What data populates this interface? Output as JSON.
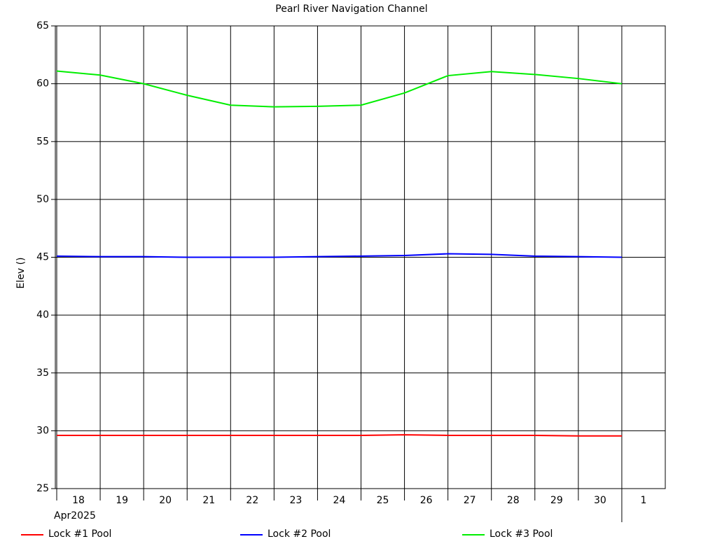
{
  "chart_data": {
    "type": "line",
    "title": "Pearl River Navigation Channel",
    "y_label": "Elev ()",
    "x_label": "Apr2025",
    "x": [
      "2025-04-18",
      "2025-04-19",
      "2025-04-20",
      "2025-04-21",
      "2025-04-22",
      "2025-04-23",
      "2025-04-24",
      "2025-04-25",
      "2025-04-26",
      "2025-04-27",
      "2025-04-28",
      "2025-04-29",
      "2025-04-30",
      "2025-05-01"
    ],
    "series": [
      {
        "name": "Lock #1 Pool",
        "color": "#ff0000",
        "values": [
          29.6,
          29.6,
          29.6,
          29.6,
          29.6,
          29.6,
          29.6,
          29.6,
          29.65,
          29.6,
          29.6,
          29.6,
          29.55,
          29.55
        ]
      },
      {
        "name": "Lock #2 Pool",
        "color": "#0000ff",
        "values": [
          45.1,
          45.05,
          45.05,
          45.0,
          45.0,
          45.0,
          45.05,
          45.1,
          45.15,
          45.3,
          45.25,
          45.1,
          45.05,
          45.0
        ]
      },
      {
        "name": "Lock #3 Pool",
        "color": "#00ee00",
        "values": [
          61.1,
          60.75,
          60.0,
          59.0,
          58.15,
          58.0,
          58.05,
          58.15,
          59.2,
          60.7,
          61.05,
          60.8,
          60.45,
          60.0
        ]
      }
    ],
    "xlim": [
      "2025-04-18",
      "2025-05-02"
    ],
    "xticks": [
      {
        "value": "2025-04-18",
        "label": "18"
      },
      {
        "value": "2025-04-19",
        "label": "19"
      },
      {
        "value": "2025-04-20",
        "label": "20"
      },
      {
        "value": "2025-04-21",
        "label": "21"
      },
      {
        "value": "2025-04-22",
        "label": "22"
      },
      {
        "value": "2025-04-23",
        "label": "23"
      },
      {
        "value": "2025-04-24",
        "label": "24"
      },
      {
        "value": "2025-04-25",
        "label": "25"
      },
      {
        "value": "2025-04-26",
        "label": "26"
      },
      {
        "value": "2025-04-27",
        "label": "27"
      },
      {
        "value": "2025-04-28",
        "label": "28"
      },
      {
        "value": "2025-04-29",
        "label": "29"
      },
      {
        "value": "2025-04-30",
        "label": "30"
      },
      {
        "value": "2025-05-01",
        "label": "1"
      }
    ],
    "ylim": [
      25,
      65
    ],
    "yticks": [
      25,
      30,
      35,
      40,
      45,
      50,
      55,
      60,
      65
    ],
    "grid": true
  }
}
